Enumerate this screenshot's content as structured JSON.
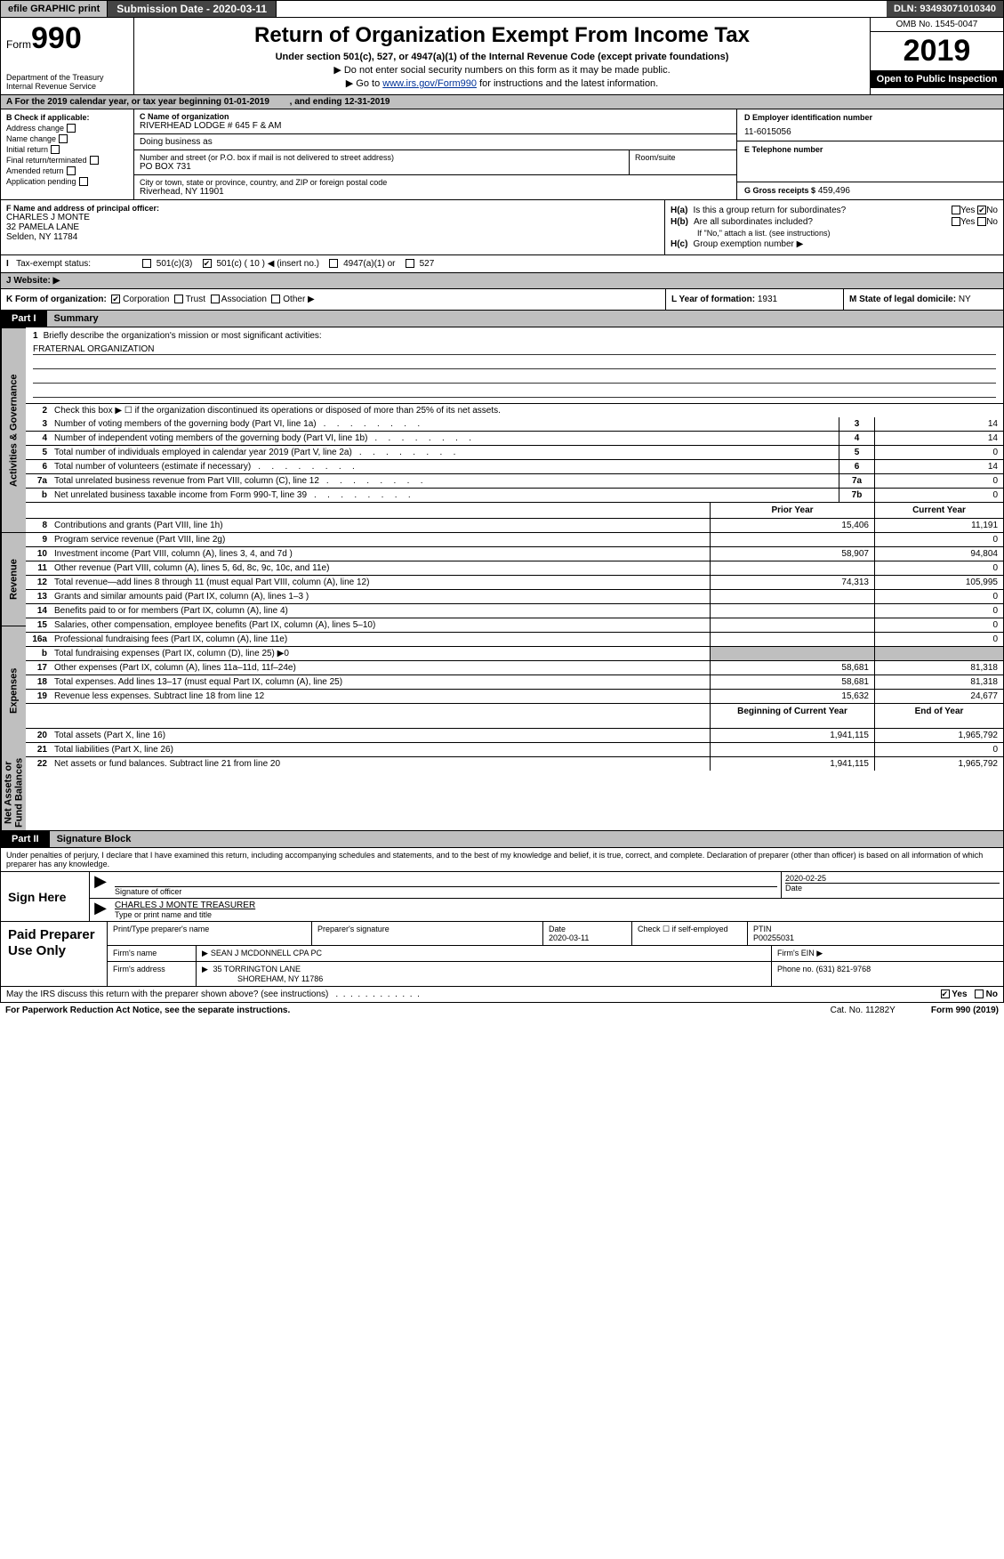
{
  "topbar": {
    "efile": "efile GRAPHIC print",
    "sub_label": "Submission Date - 2020-03-11",
    "dln": "DLN: 93493071010340"
  },
  "header": {
    "form_prefix": "Form",
    "form_number": "990",
    "dept": "Department of the Treasury\nInternal Revenue Service",
    "title": "Return of Organization Exempt From Income Tax",
    "sub1": "Under section 501(c), 527, or 4947(a)(1) of the Internal Revenue Code (except private foundations)",
    "sub2": "▶ Do not enter social security numbers on this form as it may be made public.",
    "sub3_pre": "▶ Go to ",
    "sub3_link": "www.irs.gov/Form990",
    "sub3_post": " for instructions and the latest information.",
    "omb": "OMB No. 1545-0047",
    "year": "2019",
    "open": "Open to Public Inspection"
  },
  "line_a": {
    "text": "A   For the 2019 calendar year, or tax year beginning 01-01-2019",
    "ending": ", and ending 12-31-2019"
  },
  "col_b": {
    "label": "B Check if applicable:",
    "items": [
      "Address change",
      "Name change",
      "Initial return",
      "Final return/terminated",
      "Amended return",
      "Application pending"
    ]
  },
  "col_c": {
    "name_lbl": "C Name of organization",
    "name": "RIVERHEAD LODGE # 645 F & AM",
    "dba_lbl": "Doing business as",
    "street_lbl": "Number and street (or P.O. box if mail is not delivered to street address)",
    "room_lbl": "Room/suite",
    "street": "PO BOX 731",
    "city_lbl": "City or town, state or province, country, and ZIP or foreign postal code",
    "city": "Riverhead, NY  11901"
  },
  "col_d": {
    "ein_lbl": "D Employer identification number",
    "ein": "11-6015056",
    "phone_lbl": "E Telephone number",
    "gross_lbl": "G Gross receipts $",
    "gross": "459,496"
  },
  "row_f": {
    "lbl": "F  Name and address of principal officer:",
    "name": "CHARLES J MONTE",
    "addr1": "32 PAMELA LANE",
    "addr2": "Selden, NY  11784"
  },
  "row_h": {
    "ha_lbl": "H(a)",
    "ha_text": "Is this a group return for subordinates?",
    "hb_lbl": "H(b)",
    "hb_text": "Are all subordinates included?",
    "hb_note": "If \"No,\" attach a list. (see instructions)",
    "hc_lbl": "H(c)",
    "hc_text": "Group exemption number ▶",
    "yes": "Yes",
    "no": "No"
  },
  "row_i": {
    "lbl": "Tax-exempt status:",
    "opts": [
      "501(c)(3)",
      "501(c) ( 10 ) ◀ (insert no.)",
      "4947(a)(1) or",
      "527"
    ]
  },
  "row_j": {
    "lbl": "J   Website: ▶"
  },
  "row_k": {
    "lbl": "K Form of organization:",
    "opts": [
      "Corporation",
      "Trust",
      "Association",
      "Other ▶"
    ]
  },
  "row_l": {
    "lbl": "L Year of formation:",
    "val": "1931"
  },
  "row_m": {
    "lbl": "M State of legal domicile:",
    "val": "NY"
  },
  "parts": {
    "p1": "Part I",
    "p1_title": "Summary",
    "p2": "Part II",
    "p2_title": "Signature Block"
  },
  "side": {
    "gov": "Activities & Governance",
    "rev": "Revenue",
    "exp": "Expenses",
    "net": "Net Assets or Fund Balances"
  },
  "mission": {
    "num": "1",
    "lbl": "Briefly describe the organization's mission or most significant activities:",
    "text": "FRATERNAL ORGANIZATION"
  },
  "gov_lines": [
    {
      "num": "2",
      "desc": "Check this box ▶ ☐  if the organization discontinued its operations or disposed of more than 25% of its net assets."
    },
    {
      "num": "3",
      "desc": "Number of voting members of the governing body (Part VI, line 1a)",
      "box": "3",
      "val": "14"
    },
    {
      "num": "4",
      "desc": "Number of independent voting members of the governing body (Part VI, line 1b)",
      "box": "4",
      "val": "14"
    },
    {
      "num": "5",
      "desc": "Total number of individuals employed in calendar year 2019 (Part V, line 2a)",
      "box": "5",
      "val": "0"
    },
    {
      "num": "6",
      "desc": "Total number of volunteers (estimate if necessary)",
      "box": "6",
      "val": "14"
    },
    {
      "num": "7a",
      "desc": "Total unrelated business revenue from Part VIII, column (C), line 12",
      "box": "7a",
      "val": "0"
    },
    {
      "num": "b",
      "desc": "Net unrelated business taxable income from Form 990-T, line 39",
      "box": "7b",
      "val": "0"
    }
  ],
  "col_headers": {
    "prior": "Prior Year",
    "curr": "Current Year",
    "beg": "Beginning of Current Year",
    "end": "End of Year"
  },
  "rev_lines": [
    {
      "num": "8",
      "desc": "Contributions and grants (Part VIII, line 1h)",
      "prior": "15,406",
      "curr": "11,191"
    },
    {
      "num": "9",
      "desc": "Program service revenue (Part VIII, line 2g)",
      "prior": "",
      "curr": "0"
    },
    {
      "num": "10",
      "desc": "Investment income (Part VIII, column (A), lines 3, 4, and 7d )",
      "prior": "58,907",
      "curr": "94,804"
    },
    {
      "num": "11",
      "desc": "Other revenue (Part VIII, column (A), lines 5, 6d, 8c, 9c, 10c, and 11e)",
      "prior": "",
      "curr": "0"
    },
    {
      "num": "12",
      "desc": "Total revenue—add lines 8 through 11 (must equal Part VIII, column (A), line 12)",
      "prior": "74,313",
      "curr": "105,995"
    }
  ],
  "exp_lines": [
    {
      "num": "13",
      "desc": "Grants and similar amounts paid (Part IX, column (A), lines 1–3 )",
      "prior": "",
      "curr": "0"
    },
    {
      "num": "14",
      "desc": "Benefits paid to or for members (Part IX, column (A), line 4)",
      "prior": "",
      "curr": "0"
    },
    {
      "num": "15",
      "desc": "Salaries, other compensation, employee benefits (Part IX, column (A), lines 5–10)",
      "prior": "",
      "curr": "0"
    },
    {
      "num": "16a",
      "desc": "Professional fundraising fees (Part IX, column (A), line 11e)",
      "prior": "",
      "curr": "0"
    },
    {
      "num": "b",
      "desc": "Total fundraising expenses (Part IX, column (D), line 25) ▶0",
      "prior": "blank",
      "curr": "blank"
    },
    {
      "num": "17",
      "desc": "Other expenses (Part IX, column (A), lines 11a–11d, 11f–24e)",
      "prior": "58,681",
      "curr": "81,318"
    },
    {
      "num": "18",
      "desc": "Total expenses. Add lines 13–17 (must equal Part IX, column (A), line 25)",
      "prior": "58,681",
      "curr": "81,318"
    },
    {
      "num": "19",
      "desc": "Revenue less expenses. Subtract line 18 from line 12",
      "prior": "15,632",
      "curr": "24,677"
    }
  ],
  "net_lines": [
    {
      "num": "20",
      "desc": "Total assets (Part X, line 16)",
      "prior": "1,941,115",
      "curr": "1,965,792"
    },
    {
      "num": "21",
      "desc": "Total liabilities (Part X, line 26)",
      "prior": "",
      "curr": "0"
    },
    {
      "num": "22",
      "desc": "Net assets or fund balances. Subtract line 21 from line 20",
      "prior": "1,941,115",
      "curr": "1,965,792"
    }
  ],
  "penalty": "Under penalties of perjury, I declare that I have examined this return, including accompanying schedules and statements, and to the best of my knowledge and belief, it is true, correct, and complete. Declaration of preparer (other than officer) is based on all information of which preparer has any knowledge.",
  "sign": {
    "here": "Sign Here",
    "sig_lbl": "Signature of officer",
    "date_lbl": "Date",
    "date": "2020-02-25",
    "name": "CHARLES J MONTE TREASURER",
    "name_lbl": "Type or print name and title"
  },
  "paid": {
    "lbl": "Paid Preparer Use Only",
    "h_print": "Print/Type preparer's name",
    "h_sig": "Preparer's signature",
    "h_date": "Date",
    "date": "2020-03-11",
    "h_check": "Check ☐ if self-employed",
    "h_ptin": "PTIN",
    "ptin": "P00255031",
    "firm_name_lbl": "Firm's name",
    "firm_name": "SEAN J MCDONNELL CPA PC",
    "firm_ein_lbl": "Firm's EIN ▶",
    "firm_addr_lbl": "Firm's address",
    "firm_addr1": "35 TORRINGTON LANE",
    "firm_addr2": "SHOREHAM, NY  11786",
    "phone_lbl": "Phone no.",
    "phone": "(631) 821-9768"
  },
  "discuss": {
    "text": "May the IRS discuss this return with the preparer shown above? (see instructions)",
    "yes": "Yes",
    "no": "No"
  },
  "footer": {
    "pra": "For Paperwork Reduction Act Notice, see the separate instructions.",
    "cat": "Cat. No. 11282Y",
    "form": "Form 990 (2019)"
  }
}
